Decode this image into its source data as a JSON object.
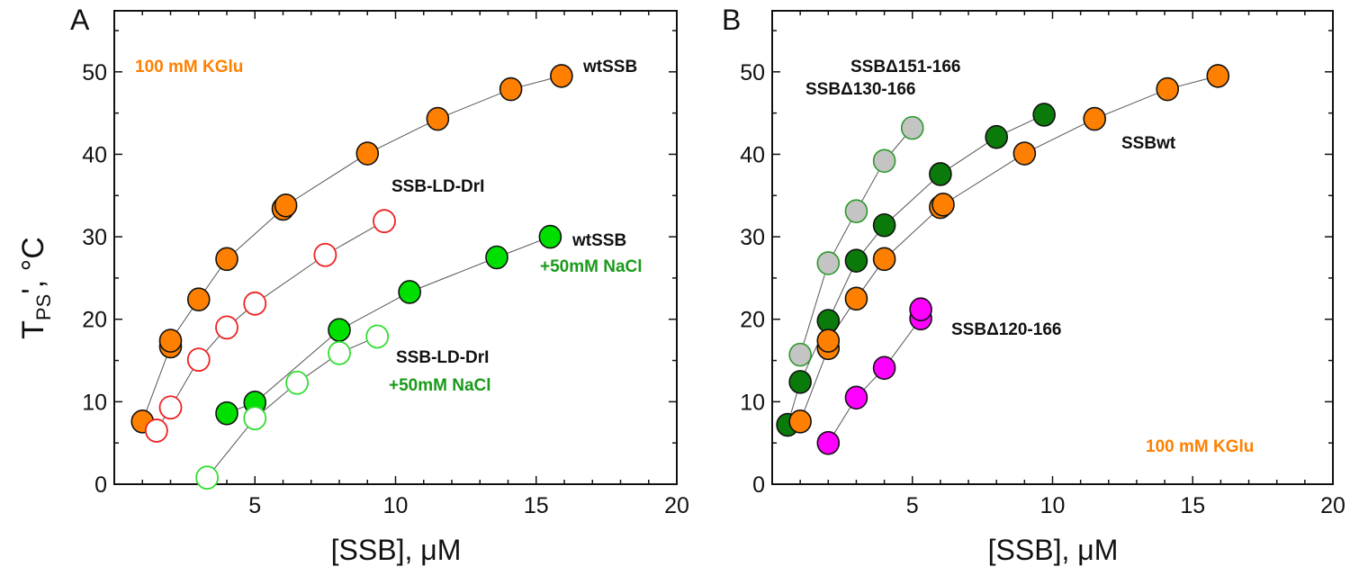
{
  "chart_data": [
    {
      "panel": "A",
      "type": "scatter",
      "xlabel": "[SSB], μM",
      "ylabel": "T",
      "ylabel_sub": "PS",
      "ylabel_suffix": "', °C",
      "xlim": [
        0,
        20
      ],
      "ylim": [
        0,
        57.4
      ],
      "xticks": [
        5,
        10,
        15,
        20
      ],
      "yticks": [
        0,
        10,
        20,
        30,
        40,
        50
      ],
      "grid": false,
      "annotations": [
        {
          "text": "100 mM KGlu",
          "color": "#ff8000"
        },
        {
          "text": "wtSSB",
          "color": "#111111"
        },
        {
          "text": "SSB-LD-DrI",
          "color": "#111111"
        },
        {
          "text": "wtSSB",
          "color": "#111111"
        },
        {
          "text": "+50mM NaCl",
          "color": "#1a9a1a"
        },
        {
          "text": "SSB-LD-DrI",
          "color": "#111111"
        },
        {
          "text": "+50mM NaCl",
          "color": "#1a9a1a"
        }
      ],
      "series": [
        {
          "marker": "filled",
          "fill": "#ff8000",
          "stroke": "#111111",
          "x": [
            1.0,
            2.0,
            2.0,
            3.0,
            4.0,
            6.0,
            6.1,
            9.0,
            11.5,
            14.1,
            15.9
          ],
          "y": [
            7.6,
            16.7,
            17.4,
            22.4,
            27.3,
            33.4,
            33.8,
            40.1,
            44.3,
            47.9,
            49.5
          ]
        },
        {
          "marker": "open",
          "fill": "#ffffff",
          "stroke": "#ee2222",
          "x": [
            1.5,
            2.0,
            3.0,
            4.0,
            5.0,
            7.5,
            9.6
          ],
          "y": [
            6.5,
            9.3,
            15.1,
            19.0,
            21.9,
            27.8,
            31.9
          ]
        },
        {
          "marker": "filled",
          "fill": "#00e000",
          "stroke": "#111111",
          "x": [
            4.0,
            5.0,
            8.0,
            10.5,
            13.6,
            15.5
          ],
          "y": [
            8.6,
            9.9,
            18.7,
            23.3,
            27.5,
            30.0
          ]
        },
        {
          "marker": "open",
          "fill": "#ffffff",
          "stroke": "#33dd33",
          "x": [
            3.3,
            5.0,
            6.5,
            8.0,
            9.35
          ],
          "y": [
            0.8,
            8.0,
            12.3,
            15.9,
            17.9
          ]
        }
      ]
    },
    {
      "panel": "B",
      "type": "scatter",
      "xlabel": "[SSB], μM",
      "xlim": [
        0,
        20
      ],
      "ylim": [
        0,
        57.4
      ],
      "xticks": [
        5,
        10,
        15,
        20
      ],
      "yticks": [
        0,
        10,
        20,
        30,
        40,
        50
      ],
      "grid": false,
      "annotations": [
        {
          "text": "SSBΔ130-166",
          "color": "#111111"
        },
        {
          "text": "SSBΔ151-166",
          "color": "#111111"
        },
        {
          "text": "SSBwt",
          "color": "#111111"
        },
        {
          "text": "SSBΔ120-166",
          "color": "#111111"
        },
        {
          "text": "100 mM KGlu",
          "color": "#ff8000"
        }
      ],
      "series": [
        {
          "marker": "filled",
          "fill": "#c4c4c4",
          "stroke": "#2a9a2a",
          "x": [
            1.0,
            2.0,
            3.0,
            4.0,
            5.0
          ],
          "y": [
            15.7,
            26.8,
            33.1,
            39.2,
            43.2
          ]
        },
        {
          "marker": "filled",
          "fill": "#0a7a0a",
          "stroke": "#111111",
          "x": [
            0.55,
            1.0,
            2.0,
            3.0,
            4.0,
            6.0,
            8.0,
            9.7
          ],
          "y": [
            7.2,
            12.4,
            19.8,
            27.1,
            31.4,
            37.6,
            42.1,
            44.8
          ]
        },
        {
          "marker": "filled",
          "fill": "#ff8000",
          "stroke": "#111111",
          "x": [
            1.0,
            2.0,
            2.0,
            3.0,
            4.0,
            6.0,
            6.1,
            9.0,
            11.5,
            14.1,
            15.9
          ],
          "y": [
            7.6,
            16.5,
            17.4,
            22.5,
            27.3,
            33.6,
            33.9,
            40.1,
            44.3,
            47.9,
            49.5
          ]
        },
        {
          "marker": "filled",
          "fill": "#ff00ff",
          "stroke": "#111111",
          "x": [
            2.0,
            3.0,
            4.0,
            5.3,
            5.3
          ],
          "y": [
            5.0,
            10.5,
            14.1,
            20.1,
            21.2
          ]
        }
      ]
    }
  ]
}
